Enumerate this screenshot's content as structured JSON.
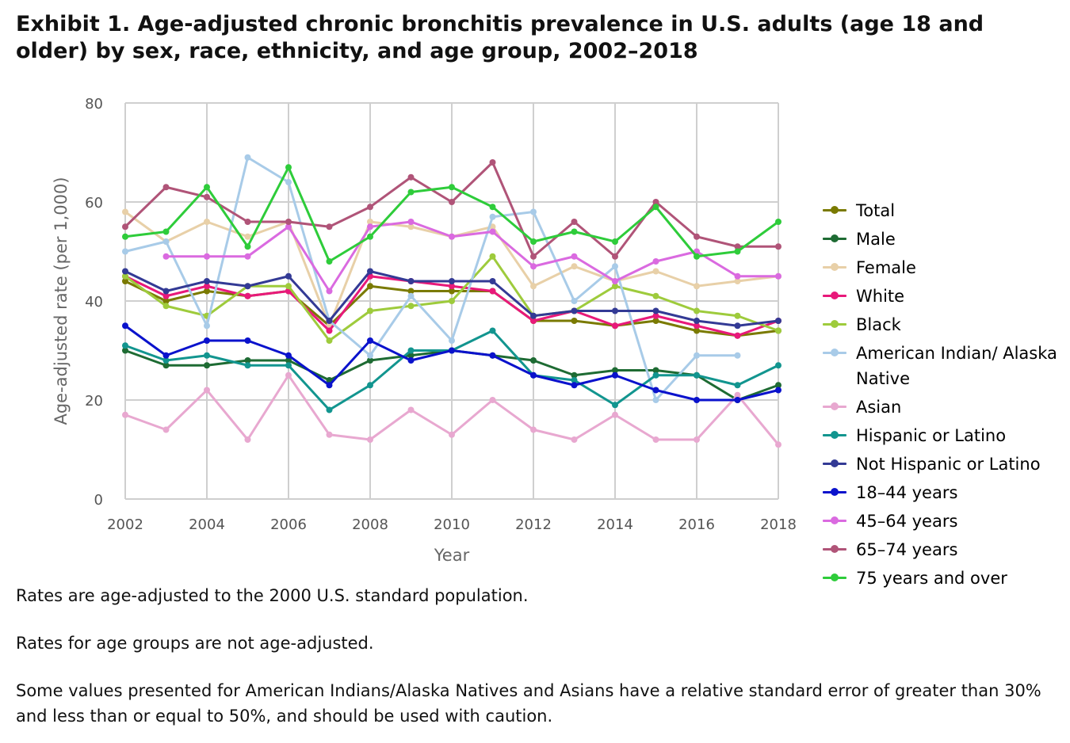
{
  "title": "Exhibit 1. Age-adjusted chronic bronchitis prevalence in U.S. adults (age 18 and older) by sex, race, ethnicity, and age group, 2002–2018",
  "notes": [
    "Rates are age-adjusted to the 2000 U.S. standard population.",
    "Rates for age groups are not age-adjusted.",
    "Some values presented for American Indians/Alaska Natives and Asians have a relative standard error of greater than 30% and less than or equal to 50%, and should be used with caution."
  ],
  "chart_data": {
    "type": "line",
    "xlabel": "Year",
    "ylabel": "Age-adjusted rate (per 1,000)",
    "ylim": [
      0,
      80
    ],
    "yticks": [
      0,
      20,
      40,
      60,
      80
    ],
    "xticks": [
      2002,
      2004,
      2006,
      2008,
      2010,
      2012,
      2014,
      2016,
      2018
    ],
    "x": [
      2002,
      2003,
      2004,
      2005,
      2006,
      2007,
      2008,
      2009,
      2010,
      2011,
      2012,
      2013,
      2014,
      2015,
      2016,
      2017,
      2018
    ],
    "grid": true,
    "legend_position": "right",
    "series": [
      {
        "name": "Total",
        "color": "#7a7a00",
        "values": [
          44,
          40,
          42,
          41,
          42,
          35,
          43,
          42,
          42,
          42,
          36,
          36,
          35,
          36,
          34,
          33,
          34
        ]
      },
      {
        "name": "Male",
        "color": "#1e6b33",
        "values": [
          30,
          27,
          27,
          28,
          28,
          24,
          28,
          29,
          30,
          29,
          28,
          25,
          26,
          26,
          25,
          20,
          23
        ]
      },
      {
        "name": "Female",
        "color": "#e8d0a8",
        "values": [
          58,
          52,
          56,
          53,
          56,
          35,
          56,
          55,
          53,
          55,
          43,
          47,
          44,
          46,
          43,
          44,
          45
        ]
      },
      {
        "name": "White",
        "color": "#e8197a",
        "values": [
          45,
          41,
          43,
          41,
          42,
          34,
          45,
          44,
          43,
          42,
          36,
          38,
          35,
          37,
          35,
          33,
          36
        ]
      },
      {
        "name": "Black",
        "color": "#9ecb3c",
        "values": [
          45,
          39,
          37,
          43,
          43,
          32,
          38,
          39,
          40,
          49,
          37,
          38,
          43,
          41,
          38,
          37,
          34
        ]
      },
      {
        "name": "American Indian/ Alaska Native",
        "color": "#a8cbe8",
        "values": [
          50,
          52,
          35,
          69,
          64,
          36,
          29,
          41,
          32,
          57,
          58,
          40,
          47,
          20,
          29,
          29,
          null
        ]
      },
      {
        "name": "Asian",
        "color": "#e8a8d0",
        "values": [
          17,
          14,
          22,
          12,
          25,
          13,
          12,
          18,
          13,
          20,
          14,
          12,
          17,
          12,
          12,
          21,
          11
        ]
      },
      {
        "name": "Hispanic or Latino",
        "color": "#12958f",
        "values": [
          31,
          28,
          29,
          27,
          27,
          18,
          23,
          30,
          30,
          34,
          25,
          24,
          19,
          25,
          25,
          23,
          27
        ]
      },
      {
        "name": "Not Hispanic or Latino",
        "color": "#333a95",
        "values": [
          46,
          42,
          44,
          43,
          45,
          36,
          46,
          44,
          44,
          44,
          37,
          38,
          38,
          38,
          36,
          35,
          36
        ]
      },
      {
        "name": "18–44 years",
        "color": "#0a12cc",
        "values": [
          35,
          29,
          32,
          32,
          29,
          23,
          32,
          28,
          30,
          29,
          25,
          23,
          25,
          22,
          20,
          20,
          22
        ]
      },
      {
        "name": "45–64 years",
        "color": "#da6ae0",
        "values": [
          null,
          49,
          49,
          49,
          55,
          42,
          55,
          56,
          53,
          54,
          47,
          49,
          44,
          48,
          50,
          45,
          45
        ]
      },
      {
        "name": "65–74 years",
        "color": "#b05478",
        "values": [
          55,
          63,
          61,
          56,
          56,
          55,
          59,
          65,
          60,
          68,
          49,
          56,
          49,
          60,
          53,
          51,
          51
        ]
      },
      {
        "name": "75 years and over",
        "color": "#2ecc3a",
        "values": [
          53,
          54,
          63,
          51,
          67,
          48,
          53,
          62,
          63,
          59,
          52,
          54,
          52,
          59,
          49,
          50,
          56
        ]
      }
    ]
  }
}
